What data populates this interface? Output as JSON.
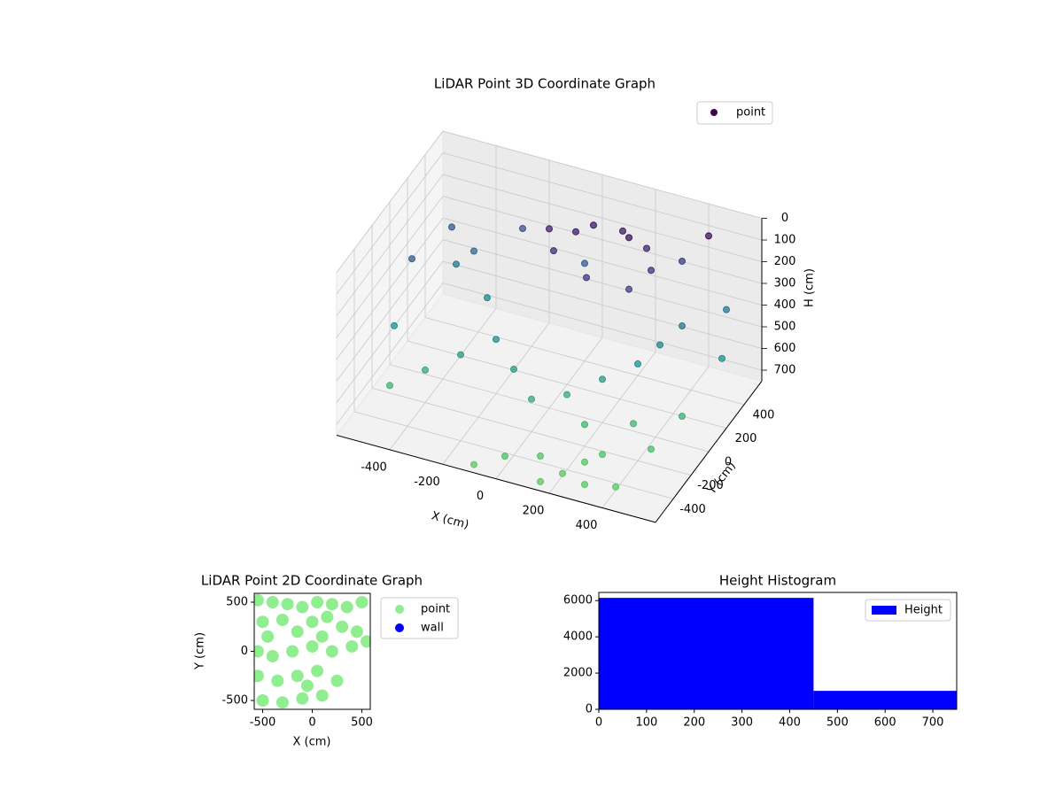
{
  "chart_data": [
    {
      "type": "scatter3d",
      "title": "LiDAR Point 3D Coordinate Graph",
      "x_label": "X (cm)",
      "y_label": "Y (cm)",
      "z_label": "H (cm)",
      "xlim": [
        -600,
        600
      ],
      "ylim": [
        -600,
        600
      ],
      "zlim": [
        0,
        750
      ],
      "z_inverted": true,
      "xticks": [
        -400,
        -200,
        0,
        200,
        400
      ],
      "yticks": [
        -400,
        -200,
        0,
        200,
        400
      ],
      "zticks": [
        0,
        100,
        200,
        300,
        400,
        500,
        600,
        700
      ],
      "colormap": [
        "#440154",
        "#3b528b",
        "#21918c",
        "#5ec962"
      ],
      "legend": "upper right",
      "series": [
        {
          "name": "point",
          "color": "#440154",
          "x": [
            0,
            50,
            150,
            250,
            300,
            250,
            100,
            -50,
            -100,
            200,
            -500,
            -450,
            -400,
            -300,
            -200,
            -100,
            0,
            -300,
            -400,
            -500,
            100,
            200,
            300,
            350,
            400,
            200,
            300,
            350,
            450,
            500,
            100,
            200,
            300,
            0,
            -100,
            400,
            250,
            150,
            450,
            500,
            -550,
            -550,
            550,
            -250,
            0,
            350
          ],
          "y": [
            300,
            350,
            380,
            350,
            250,
            150,
            120,
            200,
            300,
            300,
            400,
            300,
            350,
            200,
            0,
            -100,
            -200,
            -100,
            -200,
            -300,
            -100,
            0,
            100,
            200,
            300,
            -200,
            -300,
            -100,
            -200,
            0,
            -400,
            -450,
            -500,
            -500,
            -550,
            -450,
            -350,
            -550,
            450,
            500,
            100,
            -100,
            300,
            450,
            400,
            450
          ],
          "z": [
            100,
            80,
            90,
            120,
            150,
            200,
            180,
            150,
            120,
            60,
            300,
            400,
            350,
            450,
            500,
            550,
            600,
            550,
            600,
            650,
            600,
            550,
            500,
            450,
            400,
            650,
            700,
            650,
            680,
            620,
            720,
            740,
            730,
            700,
            745,
            735,
            725,
            740,
            50,
            400,
            300,
            500,
            500,
            250,
            300,
            200
          ]
        }
      ]
    },
    {
      "type": "scatter",
      "title": "LiDAR Point 2D Coordinate Graph",
      "x_label": "X (cm)",
      "y_label": "Y (cm)",
      "xlim": [
        -585,
        585
      ],
      "ylim": [
        -590,
        590
      ],
      "xticks": [
        -500,
        0,
        500
      ],
      "yticks": [
        -500,
        0,
        500
      ],
      "legend": "outside upper right",
      "series": [
        {
          "name": "point",
          "color": "#90ee90",
          "x": [
            -550,
            -400,
            -250,
            -100,
            50,
            200,
            350,
            500,
            -500,
            -300,
            0,
            150,
            300,
            450,
            550,
            -550,
            -400,
            -200,
            0,
            200,
            400,
            -550,
            -350,
            -150,
            50,
            250,
            -500,
            -300,
            -100,
            100,
            -50,
            -450,
            -150,
            100
          ],
          "y": [
            520,
            500,
            480,
            450,
            500,
            480,
            450,
            500,
            300,
            320,
            300,
            350,
            250,
            200,
            100,
            0,
            -50,
            0,
            50,
            0,
            50,
            -250,
            -300,
            -250,
            -200,
            -300,
            -500,
            -520,
            -480,
            -450,
            -350,
            150,
            200,
            150
          ]
        },
        {
          "name": "wall",
          "color": "#0000ff",
          "x": [],
          "y": []
        }
      ]
    },
    {
      "type": "histogram",
      "title": "Height Histogram",
      "name": "Height",
      "color": "#0000ff",
      "bins": [
        0,
        450,
        750
      ],
      "values": [
        6150,
        1020
      ],
      "xlim": [
        0,
        750
      ],
      "ylim": [
        0,
        6450
      ],
      "xticks": [
        0,
        100,
        200,
        300,
        400,
        500,
        600,
        700
      ],
      "yticks": [
        0,
        2000,
        4000,
        6000
      ],
      "legend": "upper right"
    }
  ]
}
